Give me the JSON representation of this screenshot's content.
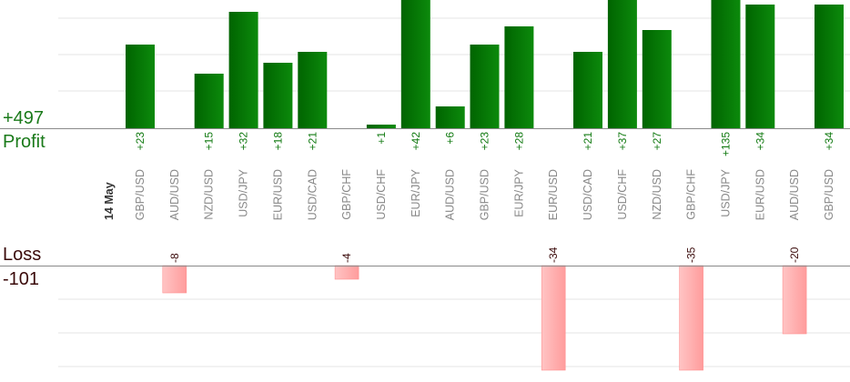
{
  "summary": {
    "profit_total": "+497",
    "profit_label": "Profit",
    "loss_label": "Loss",
    "loss_total": "-101"
  },
  "chart_data": {
    "type": "bar",
    "date_label": "14 May",
    "categories": [
      "GBP/USD",
      "AUD/USD",
      "NZD/USD",
      "USD/JPY",
      "EUR/USD",
      "USD/CAD",
      "GBP/CHF",
      "USD/CHF",
      "EUR/JPY",
      "AUD/USD",
      "GBP/USD",
      "EUR/JPY",
      "EUR/USD",
      "USD/CAD",
      "USD/CHF",
      "NZD/USD",
      "GBP/CHF",
      "USD/JPY",
      "EUR/USD",
      "AUD/USD",
      "GBP/USD"
    ],
    "profit_labels": [
      "+23",
      "",
      "+15",
      "+32",
      "+18",
      "+21",
      "",
      "+1",
      "+42",
      "+6",
      "+23",
      "+28",
      "",
      "+21",
      "+37",
      "+27",
      "",
      "+135",
      "+34",
      "",
      "+34"
    ],
    "profit_values": [
      23,
      0,
      15,
      32,
      18,
      21,
      0,
      1,
      42,
      6,
      23,
      28,
      0,
      21,
      37,
      27,
      0,
      135,
      34,
      0,
      34
    ],
    "loss_labels": [
      "",
      "-8",
      "",
      "",
      "",
      "",
      "-4",
      "",
      "",
      "",
      "",
      "",
      "-34",
      "",
      "",
      "",
      "-35",
      "",
      "",
      "-20",
      ""
    ],
    "loss_values": [
      0,
      -8,
      0,
      0,
      0,
      0,
      -4,
      0,
      0,
      0,
      0,
      0,
      -34,
      0,
      0,
      0,
      -35,
      0,
      0,
      -20,
      0
    ],
    "profit_ylim": [
      0,
      35
    ],
    "loss_ylim": [
      -30,
      0
    ],
    "grid": true,
    "colors": {
      "profit_bar": "#0a6a0a",
      "profit_label": "#117a11",
      "loss_bar": "#ffb3b3",
      "loss_label": "#3a0a0a",
      "grid": "#e6e6e6",
      "axis": "#8a8a8a"
    }
  }
}
